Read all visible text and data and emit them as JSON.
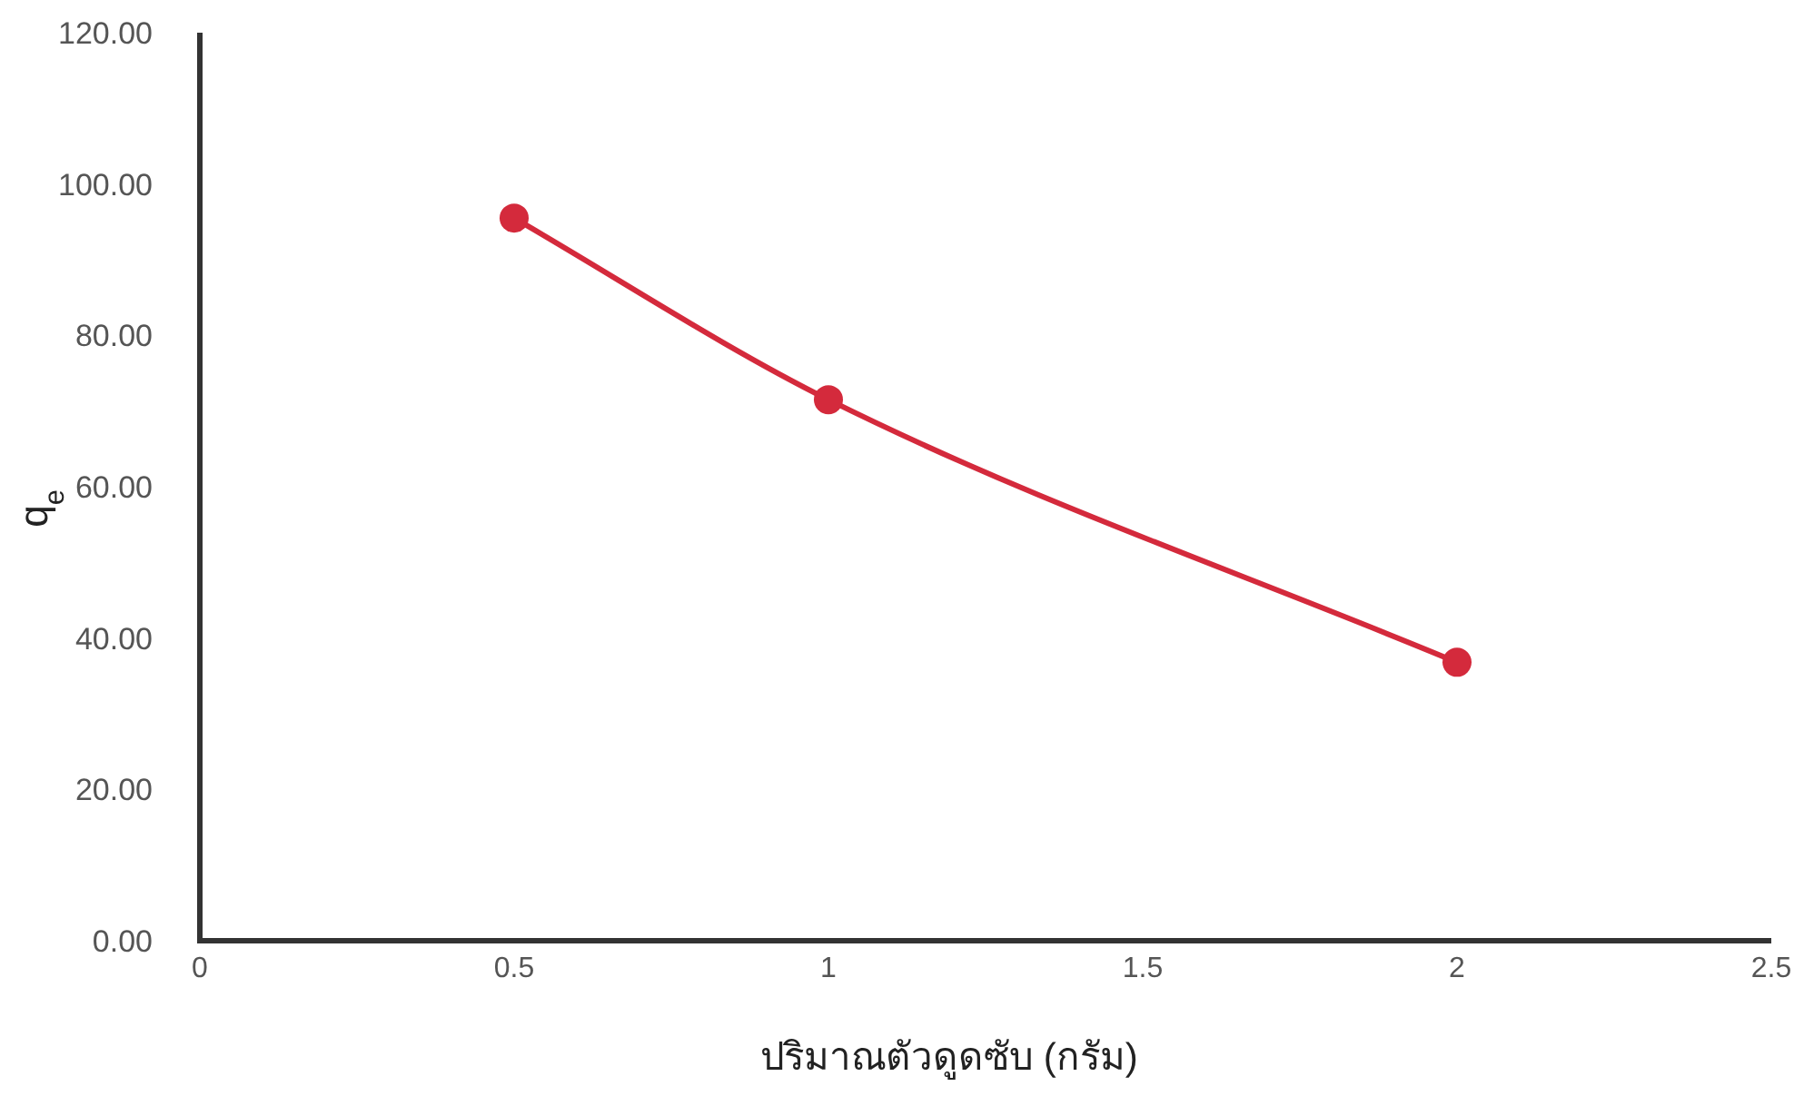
{
  "chart_data": {
    "type": "line",
    "xlabel": "ปริมาณตัวดูดซับ (กรัม)",
    "ylabel": "q$_{e}$",
    "x": [
      0.5,
      1,
      2
    ],
    "series": [
      {
        "color": "#d42a3c",
        "values": [
          95.5,
          71.5,
          36.8
        ]
      }
    ],
    "xlim": [
      0,
      2.5
    ],
    "xticks": [
      0,
      0.5,
      1,
      1.5,
      2,
      2.5
    ],
    "ylim": [
      0,
      120
    ],
    "yticks": [
      {
        "value": 0,
        "label": "0.00"
      },
      {
        "value": 20,
        "label": "20.00"
      },
      {
        "value": 40,
        "label": "40.00"
      },
      {
        "value": 60,
        "label": "60.00"
      },
      {
        "value": 80,
        "label": "80.00"
      },
      {
        "value": 100,
        "label": "100.00"
      },
      {
        "value": 120,
        "label": "120.00"
      }
    ],
    "marker": "circle",
    "line_style": "solid",
    "grid": false
  }
}
